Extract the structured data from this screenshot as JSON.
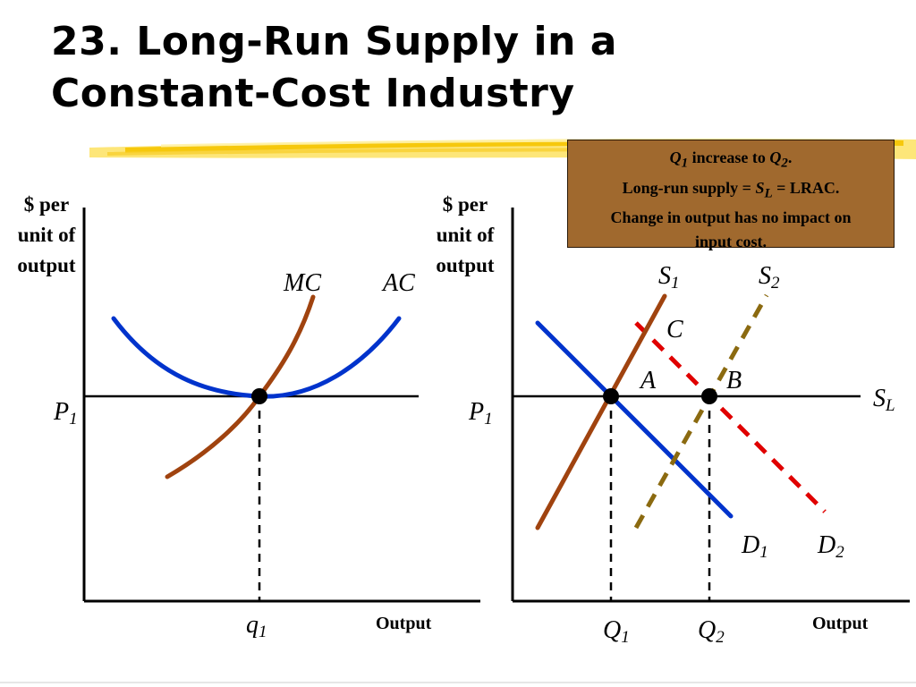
{
  "slide": {
    "title_line1": "23. Long-Run Supply in a",
    "title_line2": "Constant-Cost Industry"
  },
  "note": {
    "q1": "Q",
    "q1_sub": "1",
    "increase_text": " increase to ",
    "q2": "Q",
    "q2_sub": "2",
    "period": ".",
    "line2_pre": "Long-run supply = ",
    "s": "S",
    "s_sub": "L",
    "line2_post": " = LRAC.",
    "line3": "Change in output has no impact on",
    "line4": "input cost."
  },
  "left_graph": {
    "ylabel_1": "$ per",
    "ylabel_2": "unit of",
    "ylabel_3": "output",
    "mc": "MC",
    "ac": "AC",
    "p_main": "P",
    "p_sub": "1",
    "q_main": "q",
    "q_sub": "1",
    "xlabel": "Output"
  },
  "right_graph": {
    "ylabel_1": "$ per",
    "ylabel_2": "unit of",
    "ylabel_3": "output",
    "s1_main": "S",
    "s1_sub": "1",
    "s2_main": "S",
    "s2_sub": "2",
    "c": "C",
    "a": "A",
    "b": "B",
    "sl_main": "S",
    "sl_sub": "L",
    "p_main": "P",
    "p_sub": "1",
    "d1_main": "D",
    "d1_sub": "1",
    "d2_main": "D",
    "d2_sub": "2",
    "q1_main": "Q",
    "q1_sub": "1",
    "q2_main": "Q",
    "q2_sub": "2",
    "xlabel": "Output"
  },
  "colors": {
    "mc_curve": "#a0430f",
    "ac_curve": "#0033cc",
    "demand_d1": "#0033cc",
    "demand_d2": "#e00000",
    "supply_s1": "#a0430f",
    "supply_s2": "#8b6a10",
    "note_bg": "#a0692e",
    "accent_stroke": "#f5c400"
  }
}
